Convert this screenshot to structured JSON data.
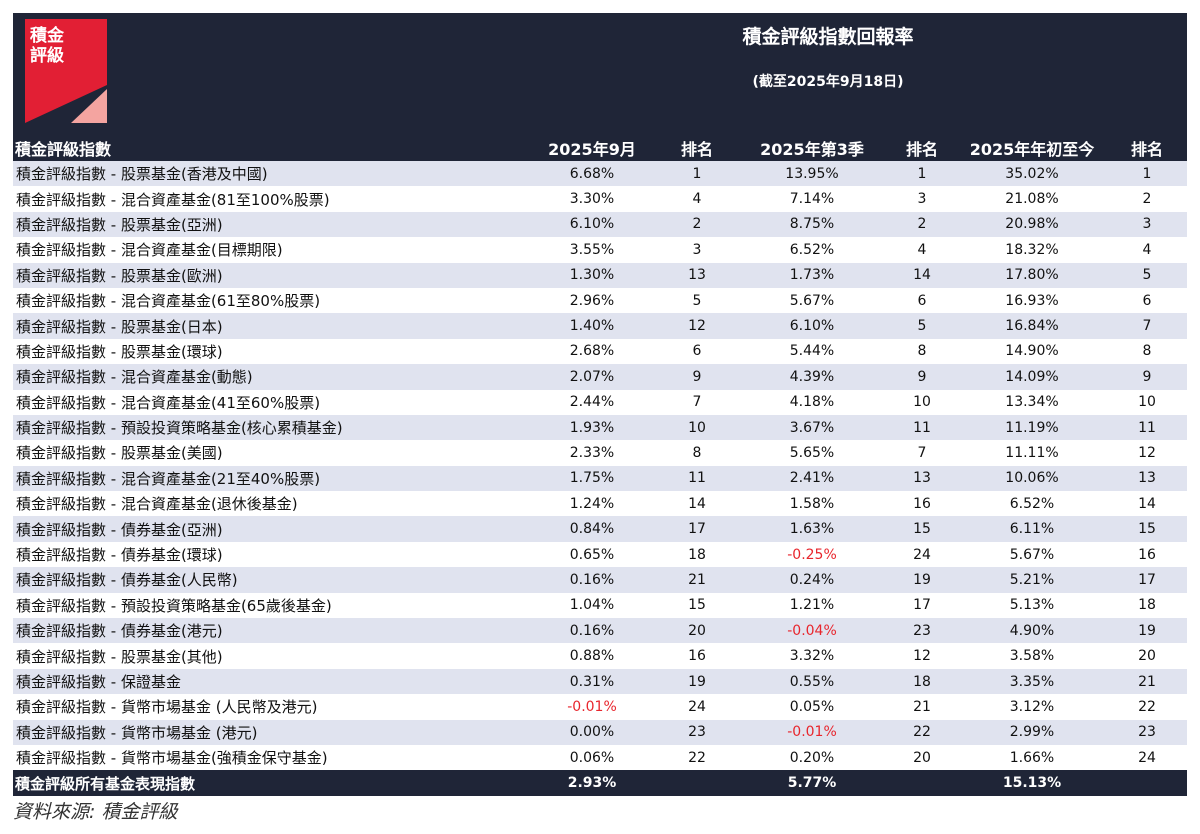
{
  "logo": {
    "text_line1": "積金",
    "text_line2": "評級",
    "red": "#e21f34",
    "pink": "#f4a4a0"
  },
  "title": "積金評級指數回報率",
  "subtitle": "(截至2025年9月18日)",
  "source": "資料來源:  積金評級",
  "colors": {
    "header_bg": "#1f2537",
    "stripe": "#e0e3ef",
    "negative": "#e8262d"
  },
  "chart_data": {
    "type": "table",
    "columns": [
      "積金評級指數",
      "2025年9月",
      "排名",
      "2025年第3季",
      "排名",
      "2025年年初至今",
      "排名"
    ],
    "rows": [
      [
        "積金評級指數 - 股票基金(香港及中國)",
        "6.68%",
        "1",
        "13.95%",
        "1",
        "35.02%",
        "1"
      ],
      [
        "積金評級指數 - 混合資產基金(81至100%股票)",
        "3.30%",
        "4",
        "7.14%",
        "3",
        "21.08%",
        "2"
      ],
      [
        "積金評級指數 - 股票基金(亞洲)",
        "6.10%",
        "2",
        "8.75%",
        "2",
        "20.98%",
        "3"
      ],
      [
        "積金評級指數 - 混合資產基金(目標期限)",
        "3.55%",
        "3",
        "6.52%",
        "4",
        "18.32%",
        "4"
      ],
      [
        "積金評級指數 - 股票基金(歐洲)",
        "1.30%",
        "13",
        "1.73%",
        "14",
        "17.80%",
        "5"
      ],
      [
        "積金評級指數 - 混合資產基金(61至80%股票)",
        "2.96%",
        "5",
        "5.67%",
        "6",
        "16.93%",
        "6"
      ],
      [
        "積金評級指數 - 股票基金(日本)",
        "1.40%",
        "12",
        "6.10%",
        "5",
        "16.84%",
        "7"
      ],
      [
        "積金評級指數 - 股票基金(環球)",
        "2.68%",
        "6",
        "5.44%",
        "8",
        "14.90%",
        "8"
      ],
      [
        "積金評級指數 - 混合資產基金(動態)",
        "2.07%",
        "9",
        "4.39%",
        "9",
        "14.09%",
        "9"
      ],
      [
        "積金評級指數 - 混合資產基金(41至60%股票)",
        "2.44%",
        "7",
        "4.18%",
        "10",
        "13.34%",
        "10"
      ],
      [
        "積金評級指數 - 預設投資策略基金(核心累積基金)",
        "1.93%",
        "10",
        "3.67%",
        "11",
        "11.19%",
        "11"
      ],
      [
        "積金評級指數 - 股票基金(美國)",
        "2.33%",
        "8",
        "5.65%",
        "7",
        "11.11%",
        "12"
      ],
      [
        "積金評級指數 - 混合資產基金(21至40%股票)",
        "1.75%",
        "11",
        "2.41%",
        "13",
        "10.06%",
        "13"
      ],
      [
        "積金評級指數 - 混合資產基金(退休後基金)",
        "1.24%",
        "14",
        "1.58%",
        "16",
        "6.52%",
        "14"
      ],
      [
        "積金評級指數 - 債券基金(亞洲)",
        "0.84%",
        "17",
        "1.63%",
        "15",
        "6.11%",
        "15"
      ],
      [
        "積金評級指數 - 債券基金(環球)",
        "0.65%",
        "18",
        "-0.25%",
        "24",
        "5.67%",
        "16"
      ],
      [
        "積金評級指數 - 債券基金(人民幣)",
        "0.16%",
        "21",
        "0.24%",
        "19",
        "5.21%",
        "17"
      ],
      [
        "積金評級指數 - 預設投資策略基金(65歲後基金)",
        "1.04%",
        "15",
        "1.21%",
        "17",
        "5.13%",
        "18"
      ],
      [
        "積金評級指數 - 債券基金(港元)",
        "0.16%",
        "20",
        "-0.04%",
        "23",
        "4.90%",
        "19"
      ],
      [
        "積金評級指數 - 股票基金(其他)",
        "0.88%",
        "16",
        "3.32%",
        "12",
        "3.58%",
        "20"
      ],
      [
        "積金評級指數 - 保證基金",
        "0.31%",
        "19",
        "0.55%",
        "18",
        "3.35%",
        "21"
      ],
      [
        "積金評級指數 - 貨幣市場基金 (人民幣及港元)",
        "-0.01%",
        "24",
        "0.05%",
        "21",
        "3.12%",
        "22"
      ],
      [
        "積金評級指數 - 貨幣市場基金 (港元)",
        "0.00%",
        "23",
        "-0.01%",
        "22",
        "2.99%",
        "23"
      ],
      [
        "積金評級指數 - 貨幣市場基金(強積金保守基金)",
        "0.06%",
        "22",
        "0.20%",
        "20",
        "1.66%",
        "24"
      ]
    ],
    "total_row": [
      "積金評級所有基金表現指數",
      "2.93%",
      "",
      "5.77%",
      "",
      "15.13%",
      ""
    ]
  }
}
